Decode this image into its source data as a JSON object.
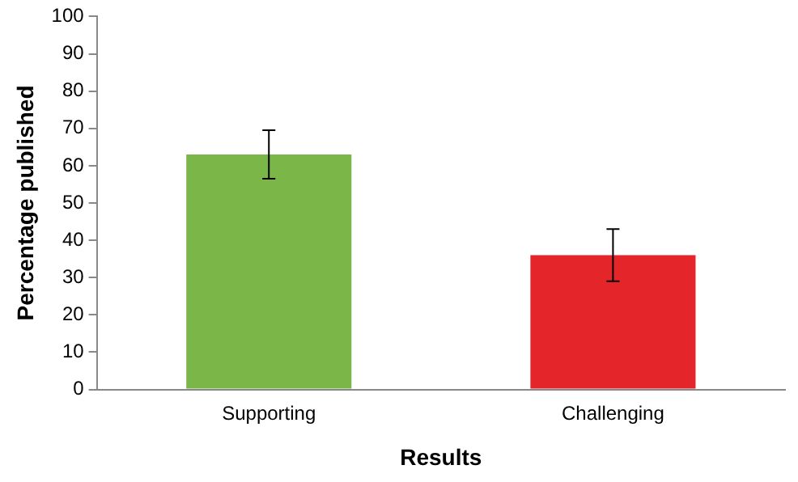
{
  "chart_data": {
    "type": "bar",
    "xlabel": "Results",
    "ylabel": "Percentage published",
    "categories": [
      "Supporting",
      "Challenging"
    ],
    "values": [
      63,
      36
    ],
    "errors": [
      6.5,
      7
    ],
    "colors": [
      "#7ab648",
      "#e4252a"
    ],
    "ylim": [
      0,
      100
    ],
    "yticks": [
      0,
      10,
      20,
      30,
      40,
      50,
      60,
      70,
      80,
      90,
      100
    ],
    "grid": false,
    "legend": false
  }
}
